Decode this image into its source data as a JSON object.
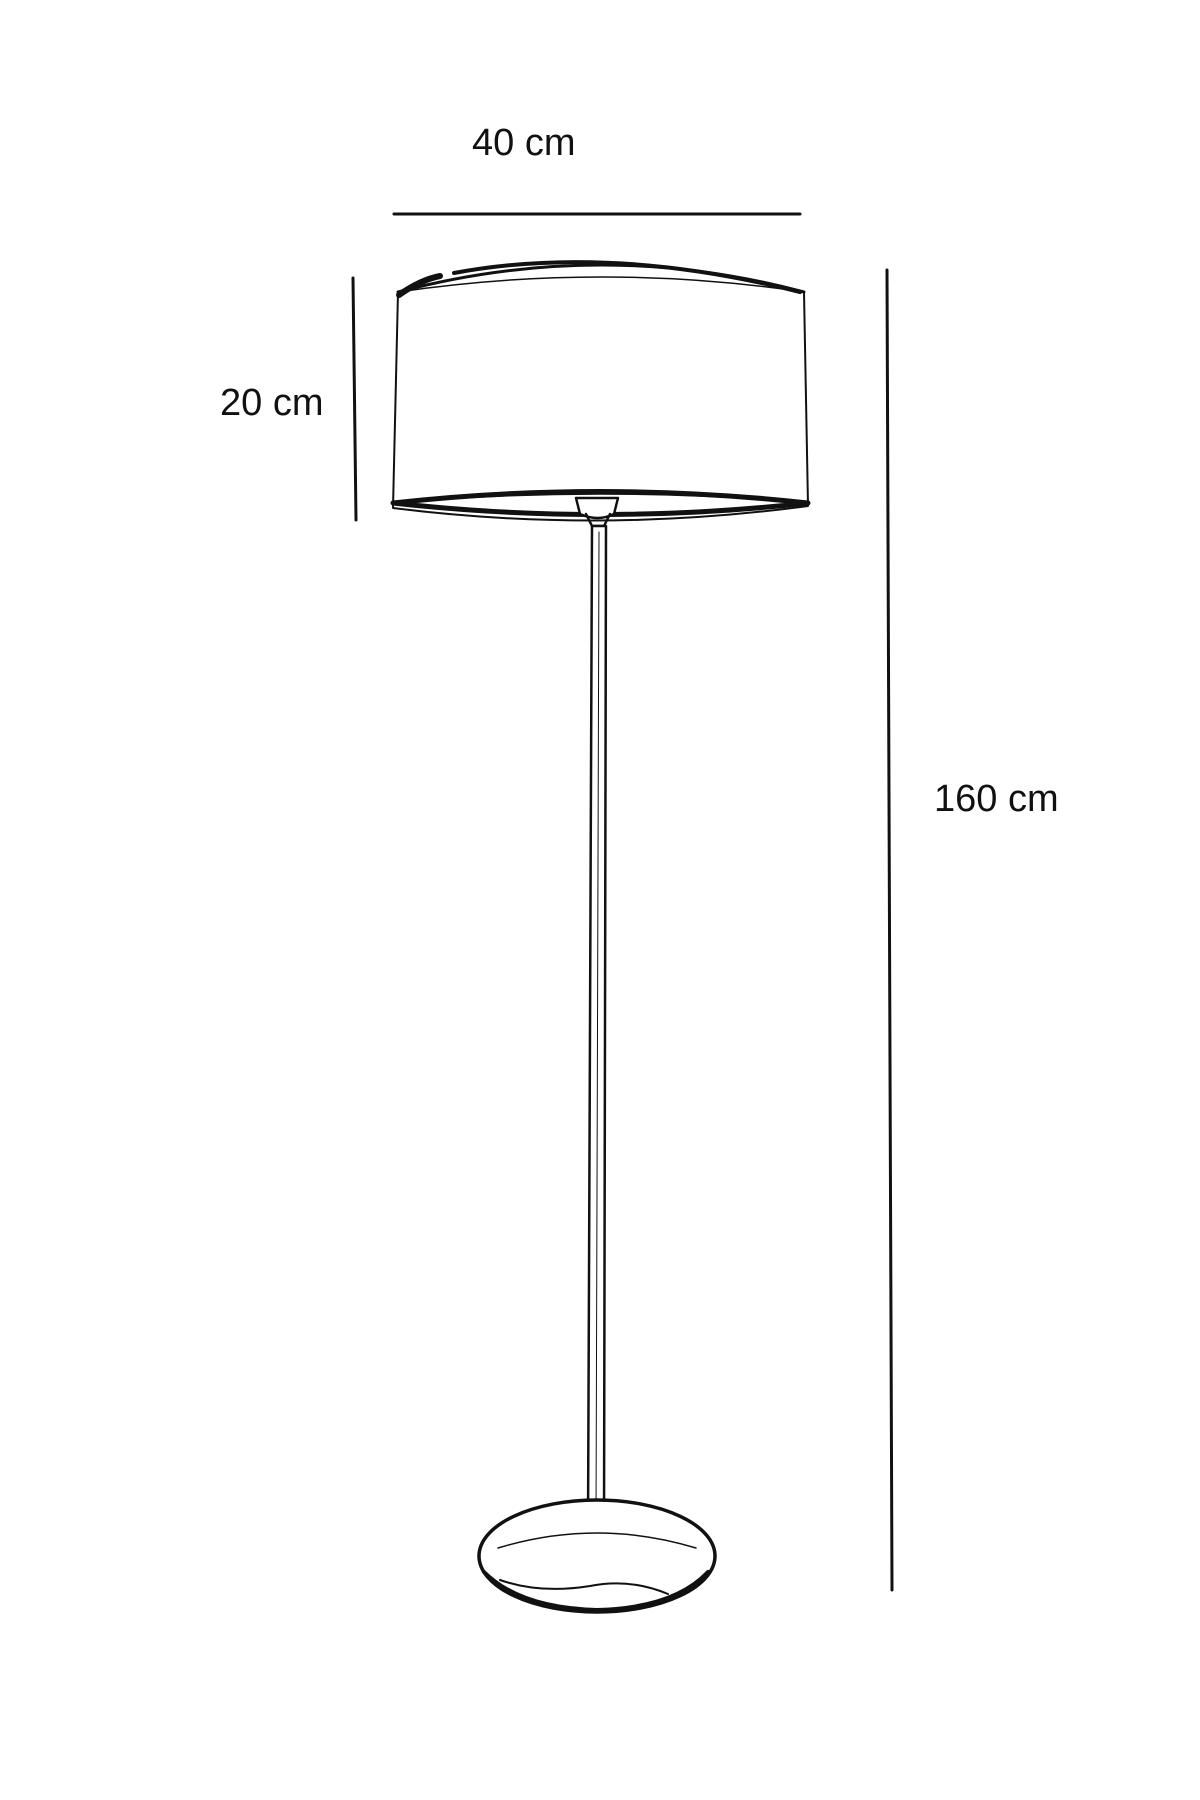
{
  "dimensions": {
    "width_label": "40 cm",
    "shade_height_label": "20 cm",
    "total_height_label": "160 cm"
  },
  "colors": {
    "line": "#111111",
    "background": "#ffffff"
  }
}
